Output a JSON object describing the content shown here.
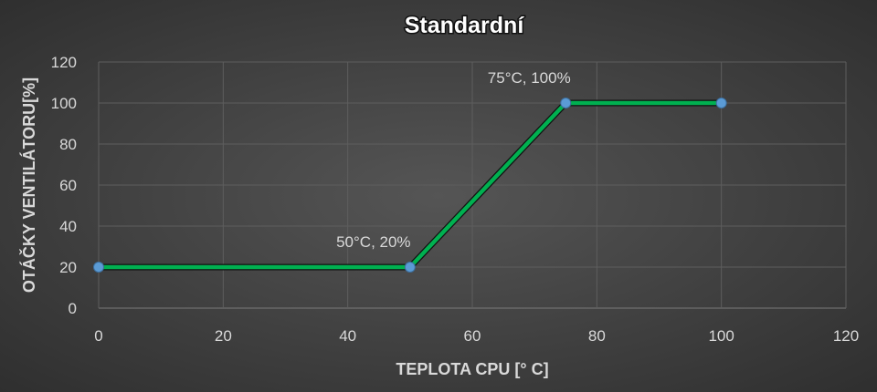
{
  "chart_data": {
    "type": "line",
    "title": "Standardní",
    "xlabel": "TEPLOTA CPU [° C]",
    "ylabel": "OTÁČKY VENTILÁTORU[%]",
    "xlim": [
      0,
      120
    ],
    "ylim": [
      0,
      120
    ],
    "x_ticks": [
      0,
      20,
      40,
      60,
      80,
      100,
      120
    ],
    "y_ticks": [
      0,
      20,
      40,
      60,
      80,
      100,
      120
    ],
    "grid": true,
    "legend": "none",
    "series": [
      {
        "x": [
          0,
          50,
          75,
          100
        ],
        "y": [
          20,
          20,
          100,
          100
        ],
        "line_color": "#00b050",
        "line_outline_color": "#111111",
        "marker_color": "#5b9bd5"
      }
    ],
    "annotations": [
      {
        "x": 50,
        "y": 20,
        "text": "50°C, 20%"
      },
      {
        "x": 75,
        "y": 100,
        "text": "75°C, 100%"
      }
    ]
  }
}
